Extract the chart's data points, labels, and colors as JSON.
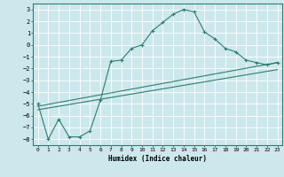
{
  "xlabel": "Humidex (Indice chaleur)",
  "bg_color": "#cce8ed",
  "grid_color": "#ffffff",
  "line_color": "#2e7d6e",
  "xlim": [
    -0.5,
    23.5
  ],
  "ylim": [
    -8.5,
    3.5
  ],
  "xticks": [
    0,
    1,
    2,
    3,
    4,
    5,
    6,
    7,
    8,
    9,
    10,
    11,
    12,
    13,
    14,
    15,
    16,
    17,
    18,
    19,
    20,
    21,
    22,
    23
  ],
  "yticks": [
    3,
    2,
    1,
    0,
    -1,
    -2,
    -3,
    -4,
    -5,
    -6,
    -7,
    -8
  ],
  "curve_x": [
    0,
    1,
    2,
    3,
    4,
    5,
    6,
    7,
    8,
    9,
    10,
    11,
    12,
    13,
    14,
    15,
    16,
    17,
    18,
    19,
    20,
    21,
    22,
    23
  ],
  "curve_y": [
    -5,
    -8,
    -6.3,
    -7.8,
    -7.8,
    -7.3,
    -4.7,
    -1.4,
    -1.3,
    -0.3,
    0.0,
    1.2,
    1.9,
    2.6,
    3.0,
    2.8,
    1.1,
    0.5,
    -0.3,
    -0.6,
    -1.3,
    -1.5,
    -1.7,
    -1.5
  ],
  "line1_x": [
    0,
    23
  ],
  "line1_y": [
    -5.2,
    -1.5
  ],
  "line2_x": [
    0,
    23
  ],
  "line2_y": [
    -5.5,
    -2.1
  ]
}
